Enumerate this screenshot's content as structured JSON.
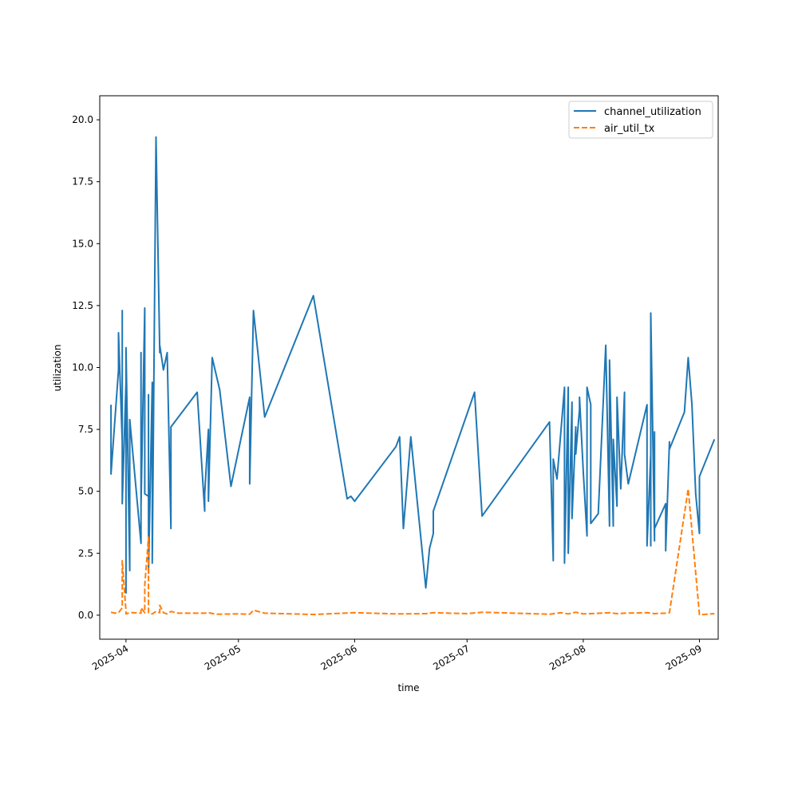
{
  "chart_data": {
    "type": "line",
    "title": "",
    "xlabel": "time",
    "ylabel": "utilization",
    "x_axis": "date",
    "x_ticks": [
      "2025-04-01",
      "2025-05-01",
      "2025-06-01",
      "2025-07-01",
      "2025-08-01",
      "2025-09-01"
    ],
    "x_tick_labels": [
      "2025-04",
      "2025-05",
      "2025-06",
      "2025-07",
      "2025-08",
      "2025-09"
    ],
    "xlim": [
      "2025-03-25",
      "2025-09-06"
    ],
    "ylim": [
      -0.97,
      20.97
    ],
    "y_ticks": [
      0.0,
      2.5,
      5.0,
      7.5,
      10.0,
      12.5,
      15.0,
      17.5,
      20.0
    ],
    "y_tick_labels": [
      "0.0",
      "2.5",
      "5.0",
      "7.5",
      "10.0",
      "12.5",
      "15.0",
      "17.5",
      "20.0"
    ],
    "grid": false,
    "legend_position": "top-right",
    "series": [
      {
        "name": "channel_utilization",
        "color": "#1f77b4",
        "dash": "solid",
        "points": [
          [
            "2025-03-28",
            8.5
          ],
          [
            "2025-03-28",
            5.7
          ],
          [
            "2025-03-30",
            9.9
          ],
          [
            "2025-03-30",
            11.4
          ],
          [
            "2025-03-31",
            7.0
          ],
          [
            "2025-03-31",
            12.3
          ],
          [
            "2025-03-31",
            4.5
          ],
          [
            "2025-04-01",
            9.4
          ],
          [
            "2025-04-01",
            2.7
          ],
          [
            "2025-04-01",
            8.5
          ],
          [
            "2025-04-01",
            0.9
          ],
          [
            "2025-04-01",
            10.8
          ],
          [
            "2025-04-02",
            1.8
          ],
          [
            "2025-04-02",
            7.0
          ],
          [
            "2025-04-02",
            7.9
          ],
          [
            "2025-04-05",
            2.9
          ],
          [
            "2025-04-05",
            10.6
          ],
          [
            "2025-04-05",
            4.4
          ],
          [
            "2025-04-06",
            12.4
          ],
          [
            "2025-04-06",
            4.9
          ],
          [
            "2025-04-07",
            4.8
          ],
          [
            "2025-04-07",
            8.9
          ],
          [
            "2025-04-07",
            1.7
          ],
          [
            "2025-04-08",
            9.4
          ],
          [
            "2025-04-08",
            2.1
          ],
          [
            "2025-04-09",
            19.3
          ],
          [
            "2025-04-10",
            10.6
          ],
          [
            "2025-04-10",
            10.9
          ],
          [
            "2025-04-11",
            9.9
          ],
          [
            "2025-04-12",
            10.6
          ],
          [
            "2025-04-13",
            3.5
          ],
          [
            "2025-04-13",
            7.6
          ],
          [
            "2025-04-20",
            9.0
          ],
          [
            "2025-04-22",
            4.2
          ],
          [
            "2025-04-22",
            4.9
          ],
          [
            "2025-04-23",
            7.5
          ],
          [
            "2025-04-23",
            4.6
          ],
          [
            "2025-04-24",
            10.4
          ],
          [
            "2025-04-26",
            9.1
          ],
          [
            "2025-04-29",
            5.2
          ],
          [
            "2025-05-04",
            8.8
          ],
          [
            "2025-05-04",
            5.3
          ],
          [
            "2025-05-05",
            12.3
          ],
          [
            "2025-05-08",
            8.0
          ],
          [
            "2025-05-21",
            12.9
          ],
          [
            "2025-05-30",
            4.7
          ],
          [
            "2025-05-31",
            4.8
          ],
          [
            "2025-06-01",
            4.6
          ],
          [
            "2025-06-12",
            6.8
          ],
          [
            "2025-06-13",
            7.2
          ],
          [
            "2025-06-14",
            3.5
          ],
          [
            "2025-06-16",
            7.2
          ],
          [
            "2025-06-20",
            1.1
          ],
          [
            "2025-06-21",
            2.7
          ],
          [
            "2025-06-22",
            3.3
          ],
          [
            "2025-06-22",
            4.2
          ],
          [
            "2025-07-03",
            9.0
          ],
          [
            "2025-07-05",
            4.0
          ],
          [
            "2025-07-23",
            7.8
          ],
          [
            "2025-07-24",
            2.2
          ],
          [
            "2025-07-24",
            6.3
          ],
          [
            "2025-07-25",
            5.5
          ],
          [
            "2025-07-27",
            9.2
          ],
          [
            "2025-07-27",
            2.1
          ],
          [
            "2025-07-28",
            9.2
          ],
          [
            "2025-07-28",
            2.5
          ],
          [
            "2025-07-29",
            8.6
          ],
          [
            "2025-07-29",
            3.9
          ],
          [
            "2025-07-30",
            7.6
          ],
          [
            "2025-07-30",
            6.5
          ],
          [
            "2025-07-31",
            8.3
          ],
          [
            "2025-07-31",
            8.8
          ],
          [
            "2025-08-01",
            5.8
          ],
          [
            "2025-08-02",
            3.2
          ],
          [
            "2025-08-02",
            9.2
          ],
          [
            "2025-08-03",
            8.5
          ],
          [
            "2025-08-03",
            3.7
          ],
          [
            "2025-08-05",
            4.1
          ],
          [
            "2025-08-07",
            10.9
          ],
          [
            "2025-08-08",
            3.6
          ],
          [
            "2025-08-08",
            10.3
          ],
          [
            "2025-08-09",
            3.6
          ],
          [
            "2025-08-09",
            7.1
          ],
          [
            "2025-08-10",
            4.4
          ],
          [
            "2025-08-10",
            8.8
          ],
          [
            "2025-08-11",
            5.1
          ],
          [
            "2025-08-12",
            9.0
          ],
          [
            "2025-08-12",
            6.5
          ],
          [
            "2025-08-13",
            5.3
          ],
          [
            "2025-08-18",
            8.5
          ],
          [
            "2025-08-18",
            2.8
          ],
          [
            "2025-08-19",
            6.5
          ],
          [
            "2025-08-19",
            2.8
          ],
          [
            "2025-08-19",
            12.2
          ],
          [
            "2025-08-20",
            3.0
          ],
          [
            "2025-08-20",
            7.4
          ],
          [
            "2025-08-20",
            3.5
          ],
          [
            "2025-08-23",
            4.5
          ],
          [
            "2025-08-23",
            2.6
          ],
          [
            "2025-08-24",
            7.0
          ],
          [
            "2025-08-24",
            6.7
          ],
          [
            "2025-08-28",
            8.2
          ],
          [
            "2025-08-29",
            10.4
          ],
          [
            "2025-08-30",
            8.5
          ],
          [
            "2025-08-31",
            4.9
          ],
          [
            "2025-09-01",
            3.3
          ],
          [
            "2025-09-01",
            5.6
          ],
          [
            "2025-09-05",
            7.1
          ]
        ]
      },
      {
        "name": "air_util_tx",
        "color": "#ff7f0e",
        "dash": "dashed",
        "points": [
          [
            "2025-03-28",
            0.12
          ],
          [
            "2025-03-29",
            0.08
          ],
          [
            "2025-03-30",
            0.1
          ],
          [
            "2025-03-31",
            0.3
          ],
          [
            "2025-03-31",
            2.2
          ],
          [
            "2025-04-01",
            0.15
          ],
          [
            "2025-04-01",
            0.05
          ],
          [
            "2025-04-02",
            0.1
          ],
          [
            "2025-04-03",
            0.1
          ],
          [
            "2025-04-05",
            0.08
          ],
          [
            "2025-04-05",
            0.3
          ],
          [
            "2025-04-06",
            0.1
          ],
          [
            "2025-04-06",
            1.2
          ],
          [
            "2025-04-07",
            3.15
          ],
          [
            "2025-04-07",
            0.1
          ],
          [
            "2025-04-08",
            0.05
          ],
          [
            "2025-04-09",
            0.15
          ],
          [
            "2025-04-10",
            0.1
          ],
          [
            "2025-04-10",
            0.4
          ],
          [
            "2025-04-11",
            0.1
          ],
          [
            "2025-04-12",
            0.05
          ],
          [
            "2025-04-13",
            0.15
          ],
          [
            "2025-04-15",
            0.08
          ],
          [
            "2025-04-22",
            0.08
          ],
          [
            "2025-04-23",
            0.1
          ],
          [
            "2025-04-25",
            0.04
          ],
          [
            "2025-05-01",
            0.05
          ],
          [
            "2025-05-04",
            0.04
          ],
          [
            "2025-05-05",
            0.2
          ],
          [
            "2025-05-08",
            0.08
          ],
          [
            "2025-05-21",
            0.03
          ],
          [
            "2025-06-01",
            0.1
          ],
          [
            "2025-06-12",
            0.05
          ],
          [
            "2025-06-20",
            0.06
          ],
          [
            "2025-06-22",
            0.1
          ],
          [
            "2025-07-01",
            0.06
          ],
          [
            "2025-07-05",
            0.12
          ],
          [
            "2025-07-23",
            0.04
          ],
          [
            "2025-07-26",
            0.1
          ],
          [
            "2025-07-28",
            0.05
          ],
          [
            "2025-07-30",
            0.12
          ],
          [
            "2025-08-01",
            0.05
          ],
          [
            "2025-08-03",
            0.06
          ],
          [
            "2025-08-08",
            0.1
          ],
          [
            "2025-08-10",
            0.06
          ],
          [
            "2025-08-12",
            0.08
          ],
          [
            "2025-08-18",
            0.1
          ],
          [
            "2025-08-20",
            0.06
          ],
          [
            "2025-08-23",
            0.08
          ],
          [
            "2025-08-24",
            0.1
          ],
          [
            "2025-08-29",
            5.1
          ],
          [
            "2025-09-01",
            0.02
          ],
          [
            "2025-09-05",
            0.06
          ]
        ]
      }
    ]
  }
}
